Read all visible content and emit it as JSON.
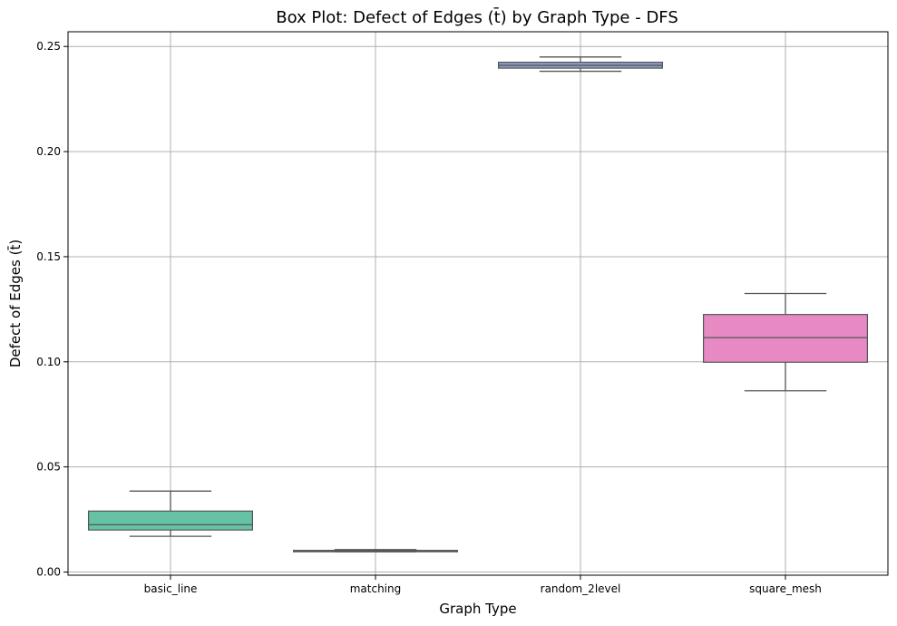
{
  "chart_data": {
    "type": "box",
    "title": "Box Plot: Defect of Edges (t̄) by Graph Type - DFS",
    "xlabel": "Graph Type",
    "ylabel": "Defect of Edges (t̄)",
    "ylim": [
      -0.0015,
      0.257
    ],
    "yticks": [
      0.0,
      0.05,
      0.1,
      0.15,
      0.2,
      0.25
    ],
    "ytick_labels": [
      "0.00",
      "0.05",
      "0.10",
      "0.15",
      "0.20",
      "0.25"
    ],
    "grid": true,
    "categories": [
      "basic_line",
      "matching",
      "random_2level",
      "square_mesh"
    ],
    "boxes": [
      {
        "category": "basic_line",
        "whisker_low": 0.017,
        "q1": 0.02,
        "median": 0.0225,
        "q3": 0.029,
        "whisker_high": 0.0385,
        "color": "#66c2a5"
      },
      {
        "category": "matching",
        "whisker_low": 0.0097,
        "q1": 0.0099,
        "median": 0.0101,
        "q3": 0.0103,
        "whisker_high": 0.0107,
        "color": "#fc8d62"
      },
      {
        "category": "random_2level",
        "whisker_low": 0.2382,
        "q1": 0.2397,
        "median": 0.241,
        "q3": 0.2425,
        "whisker_high": 0.245,
        "color": "#8da0cb"
      },
      {
        "category": "square_mesh",
        "whisker_low": 0.0862,
        "q1": 0.0998,
        "median": 0.1115,
        "q3": 0.1225,
        "whisker_high": 0.1325,
        "color": "#e78ac3"
      }
    ]
  }
}
